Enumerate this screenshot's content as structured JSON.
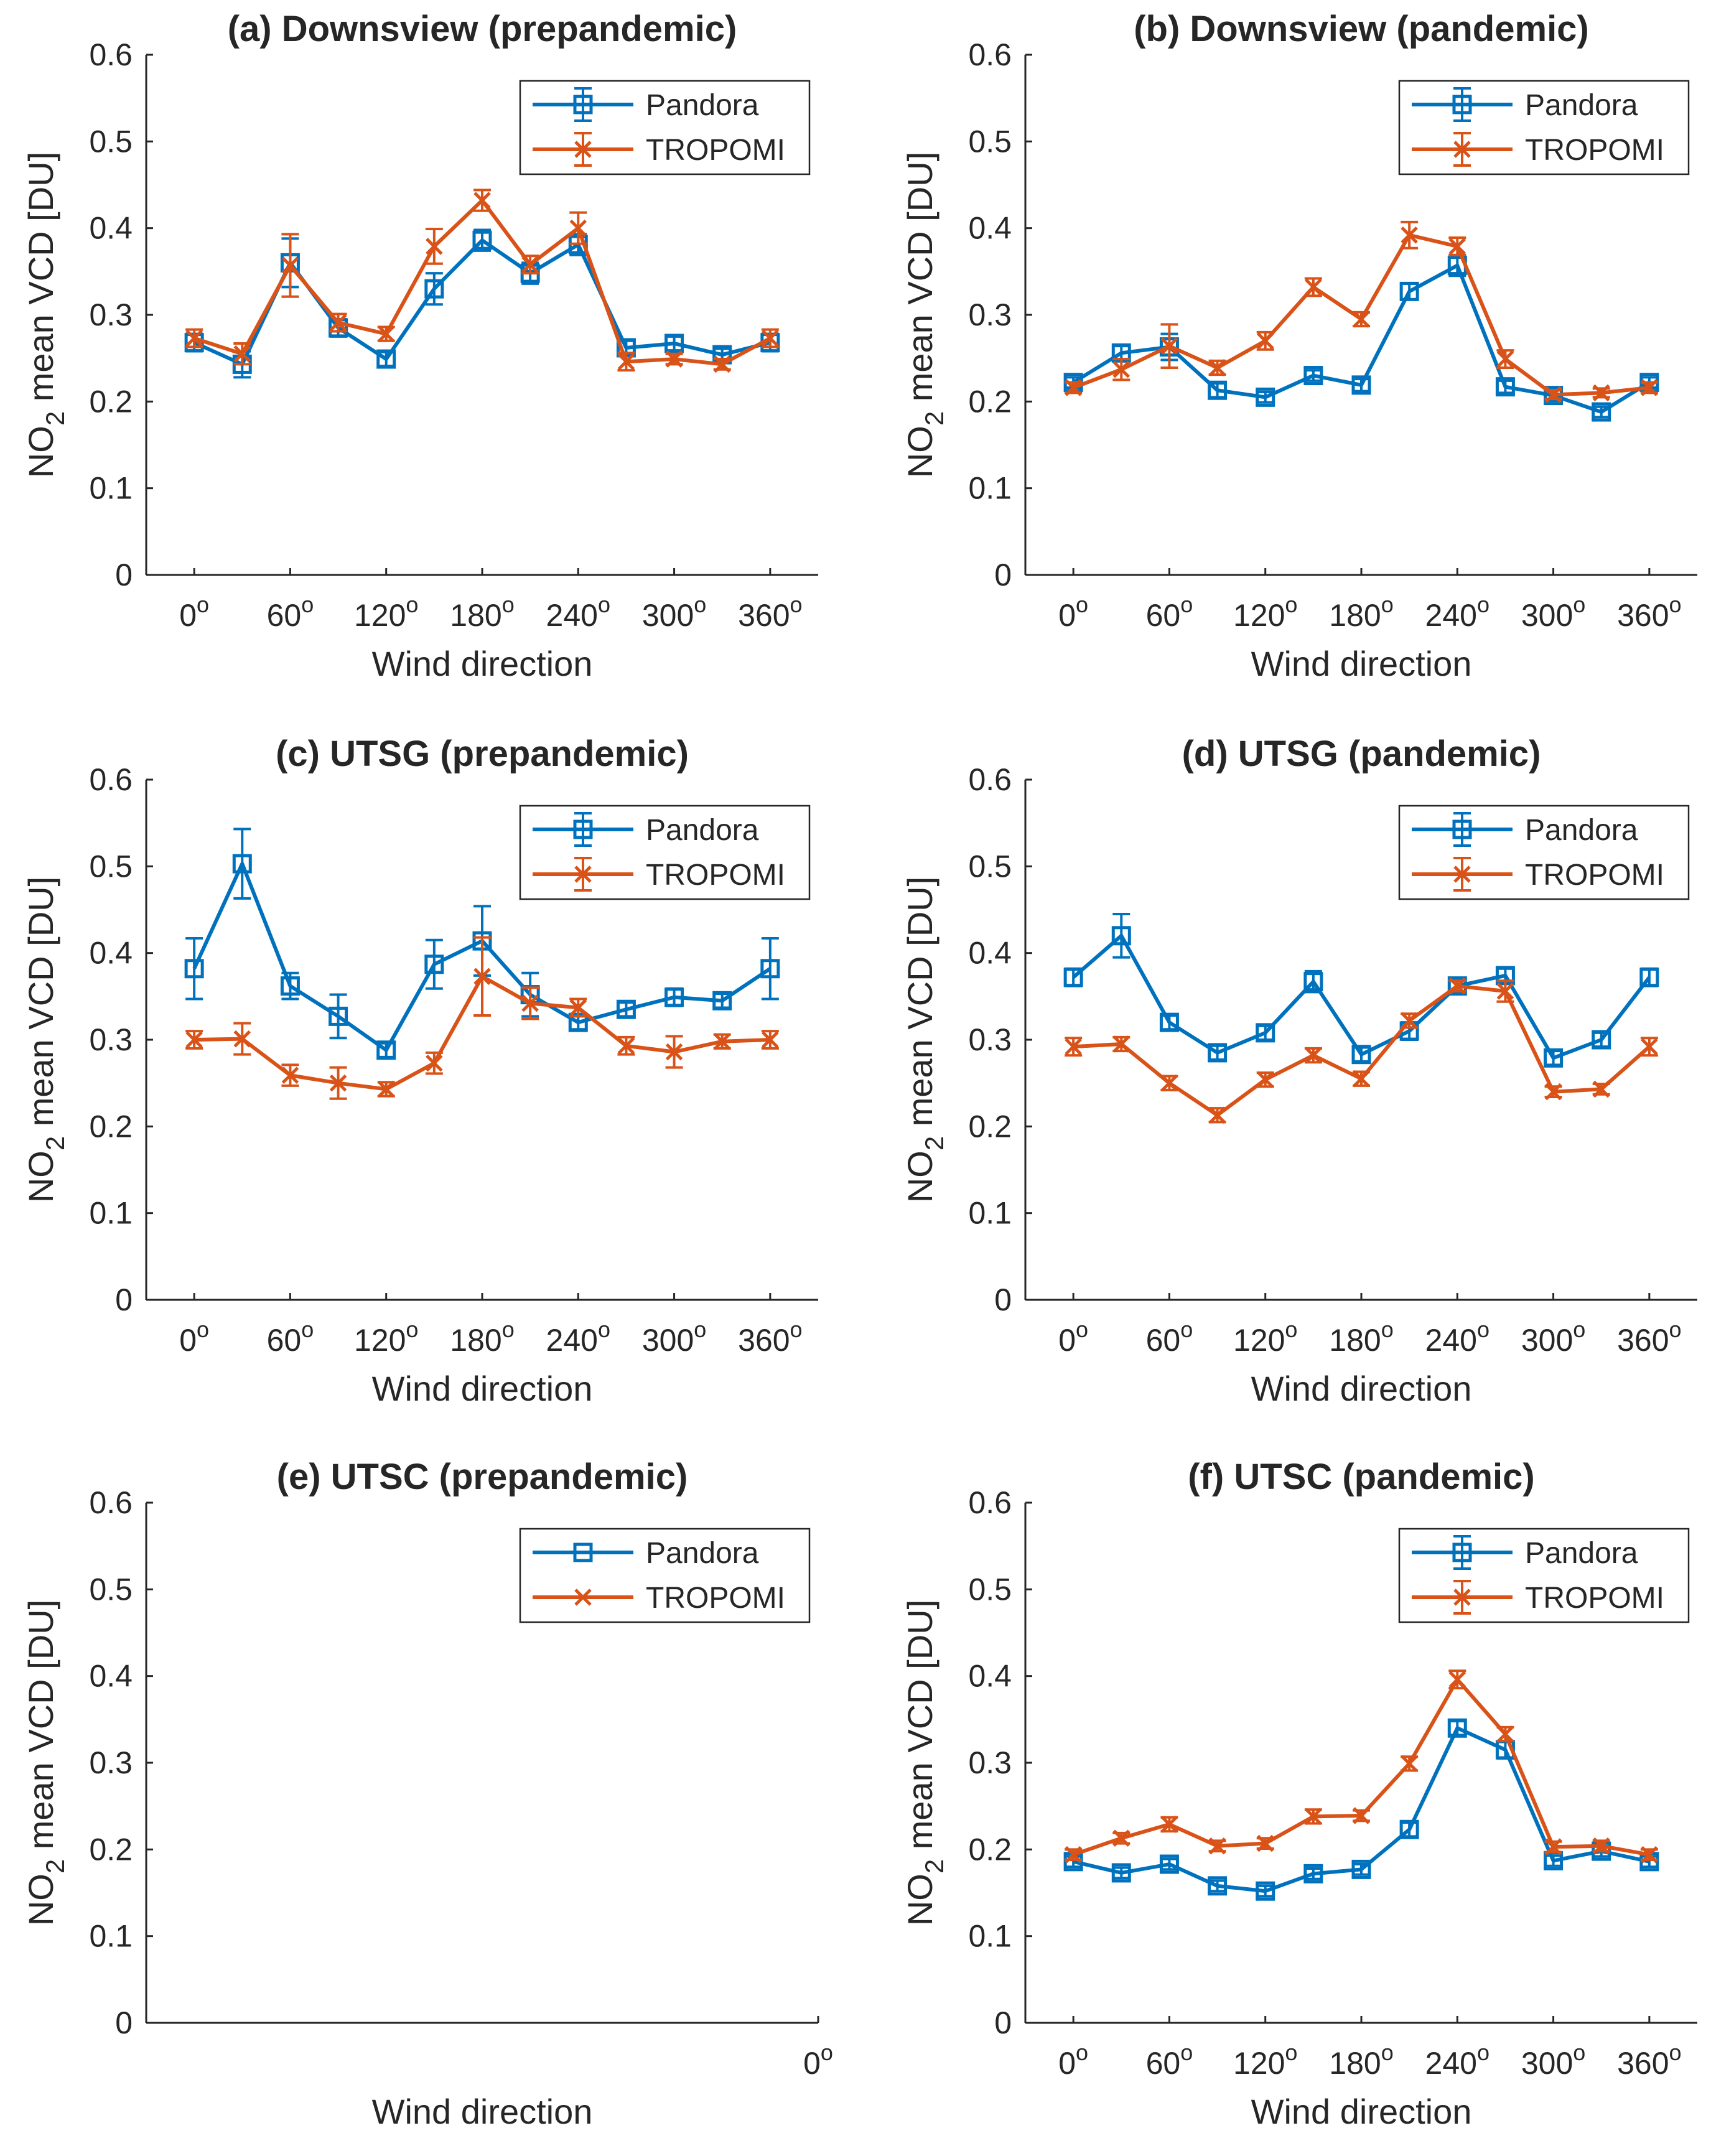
{
  "figure": {
    "colors": {
      "pandora": "#0072BD",
      "tropomi": "#D95319",
      "axis": "#262626"
    }
  },
  "chart_data": [
    {
      "type": "line",
      "title": "(a) Downsview (prepandemic)",
      "xlabel": "Wind direction",
      "ylabel_parts": [
        "NO",
        "2",
        " mean VCD [DU]"
      ],
      "xlim": [
        -30,
        390
      ],
      "ylim": [
        0,
        0.6
      ],
      "yticks": [
        "0",
        "0.1",
        "0.2",
        "0.3",
        "0.4",
        "0.5",
        "0.6"
      ],
      "xticks": [
        "0",
        "60",
        "120",
        "180",
        "240",
        "300",
        "360"
      ],
      "degree_symbol": "o",
      "legend": {
        "location": "top-right",
        "entries": [
          "Pandora",
          "TROPOMI"
        ]
      },
      "x": [
        0,
        30,
        60,
        90,
        120,
        150,
        180,
        210,
        240,
        270,
        300,
        330,
        360
      ],
      "series": [
        {
          "name": "Pandora",
          "marker": "square",
          "values": [
            0.268,
            0.243,
            0.36,
            0.285,
            0.249,
            0.33,
            0.386,
            0.348,
            0.381,
            0.262,
            0.267,
            0.254,
            0.268
          ],
          "errors": [
            0.01,
            0.015,
            0.028,
            0.01,
            0.008,
            0.018,
            0.012,
            0.012,
            0.012,
            0.008,
            0.008,
            0.007,
            0.01
          ]
        },
        {
          "name": "TROPOMI",
          "marker": "x",
          "values": [
            0.273,
            0.255,
            0.357,
            0.291,
            0.278,
            0.379,
            0.432,
            0.358,
            0.4,
            0.246,
            0.249,
            0.243,
            0.273
          ],
          "errors": [
            0.01,
            0.012,
            0.036,
            0.01,
            0.008,
            0.02,
            0.012,
            0.01,
            0.018,
            0.01,
            0.006,
            0.006,
            0.01
          ]
        }
      ]
    },
    {
      "type": "line",
      "title": "(b) Downsview (pandemic)",
      "xlabel": "Wind direction",
      "ylabel_parts": [
        "NO",
        "2",
        " mean VCD [DU]"
      ],
      "xlim": [
        -30,
        390
      ],
      "ylim": [
        0,
        0.6
      ],
      "yticks": [
        "0",
        "0.1",
        "0.2",
        "0.3",
        "0.4",
        "0.5",
        "0.6"
      ],
      "xticks": [
        "0",
        "60",
        "120",
        "180",
        "240",
        "300",
        "360"
      ],
      "degree_symbol": "o",
      "legend": {
        "location": "top-right",
        "entries": [
          "Pandora",
          "TROPOMI"
        ]
      },
      "x": [
        0,
        30,
        60,
        90,
        120,
        150,
        180,
        210,
        240,
        270,
        300,
        330,
        360
      ],
      "series": [
        {
          "name": "Pandora",
          "marker": "square",
          "values": [
            0.222,
            0.256,
            0.263,
            0.213,
            0.205,
            0.23,
            0.219,
            0.327,
            0.357,
            0.217,
            0.207,
            0.188,
            0.222
          ],
          "errors": [
            0.006,
            0.008,
            0.015,
            0.008,
            0.006,
            0.006,
            0.007,
            0.009,
            0.012,
            0.007,
            0.006,
            0.006,
            0.006
          ]
        },
        {
          "name": "TROPOMI",
          "marker": "x",
          "values": [
            0.216,
            0.237,
            0.264,
            0.239,
            0.27,
            0.332,
            0.295,
            0.392,
            0.379,
            0.249,
            0.208,
            0.21,
            0.216
          ],
          "errors": [
            0.006,
            0.012,
            0.025,
            0.008,
            0.01,
            0.01,
            0.008,
            0.015,
            0.01,
            0.01,
            0.005,
            0.005,
            0.006
          ]
        }
      ]
    },
    {
      "type": "line",
      "title": "(c) UTSG (prepandemic)",
      "xlabel": "Wind direction",
      "ylabel_parts": [
        "NO",
        "2",
        " mean VCD [DU]"
      ],
      "xlim": [
        -30,
        390
      ],
      "ylim": [
        0,
        0.6
      ],
      "yticks": [
        "0",
        "0.1",
        "0.2",
        "0.3",
        "0.4",
        "0.5",
        "0.6"
      ],
      "xticks": [
        "0",
        "60",
        "120",
        "180",
        "240",
        "300",
        "360"
      ],
      "degree_symbol": "o",
      "legend": {
        "location": "top-right",
        "entries": [
          "Pandora",
          "TROPOMI"
        ]
      },
      "x": [
        0,
        30,
        60,
        90,
        120,
        150,
        180,
        210,
        240,
        270,
        300,
        330,
        360
      ],
      "series": [
        {
          "name": "Pandora",
          "marker": "square",
          "values": [
            0.382,
            0.503,
            0.362,
            0.327,
            0.288,
            0.387,
            0.414,
            0.352,
            0.32,
            0.335,
            0.349,
            0.345,
            0.382
          ],
          "errors": [
            0.035,
            0.04,
            0.015,
            0.025,
            0.008,
            0.028,
            0.04,
            0.025,
            0.008,
            0.008,
            0.01,
            0.008,
            0.035
          ]
        },
        {
          "name": "TROPOMI",
          "marker": "x",
          "values": [
            0.3,
            0.301,
            0.259,
            0.25,
            0.243,
            0.273,
            0.373,
            0.342,
            0.337,
            0.293,
            0.286,
            0.298,
            0.3
          ],
          "errors": [
            0.01,
            0.018,
            0.012,
            0.018,
            0.008,
            0.012,
            0.045,
            0.018,
            0.01,
            0.01,
            0.018,
            0.008,
            0.01
          ]
        }
      ]
    },
    {
      "type": "line",
      "title": "(d) UTSG (pandemic)",
      "xlabel": "Wind direction",
      "ylabel_parts": [
        "NO",
        "2",
        " mean VCD [DU]"
      ],
      "xlim": [
        -30,
        390
      ],
      "ylim": [
        0,
        0.6
      ],
      "yticks": [
        "0",
        "0.1",
        "0.2",
        "0.3",
        "0.4",
        "0.5",
        "0.6"
      ],
      "xticks": [
        "0",
        "60",
        "120",
        "180",
        "240",
        "300",
        "360"
      ],
      "degree_symbol": "o",
      "legend": {
        "location": "top-right",
        "entries": [
          "Pandora",
          "TROPOMI"
        ]
      },
      "x": [
        0,
        30,
        60,
        90,
        120,
        150,
        180,
        210,
        240,
        270,
        300,
        330,
        360
      ],
      "series": [
        {
          "name": "Pandora",
          "marker": "square",
          "values": [
            0.372,
            0.42,
            0.32,
            0.285,
            0.308,
            0.367,
            0.283,
            0.31,
            0.362,
            0.374,
            0.279,
            0.3,
            0.372
          ],
          "errors": [
            0.01,
            0.025,
            0.008,
            0.008,
            0.008,
            0.012,
            0.008,
            0.01,
            0.008,
            0.008,
            0.008,
            0.008,
            0.01
          ]
        },
        {
          "name": "TROPOMI",
          "marker": "x",
          "values": [
            0.292,
            0.295,
            0.25,
            0.213,
            0.254,
            0.282,
            0.255,
            0.322,
            0.362,
            0.356,
            0.24,
            0.243,
            0.292
          ],
          "errors": [
            0.01,
            0.008,
            0.008,
            0.008,
            0.008,
            0.008,
            0.008,
            0.008,
            0.006,
            0.012,
            0.006,
            0.006,
            0.01
          ]
        }
      ]
    },
    {
      "type": "line",
      "title": "(e) UTSC (prepandemic)",
      "xlabel": "Wind direction",
      "ylabel_parts": [
        "NO",
        "2",
        " mean VCD [DU]"
      ],
      "xlim": [
        -30,
        390
      ],
      "ylim": [
        0,
        0.6
      ],
      "yticks": [
        "0",
        "0.1",
        "0.2",
        "0.3",
        "0.4",
        "0.5",
        "0.6"
      ],
      "xticks": [
        "0"
      ],
      "xtick_pos": "right-edge",
      "degree_symbol": "o",
      "legend": {
        "location": "top-right",
        "entries": [
          "Pandora",
          "TROPOMI"
        ],
        "no_errorbars": true
      },
      "x": [],
      "series": [
        {
          "name": "Pandora",
          "marker": "square",
          "values": [],
          "errors": []
        },
        {
          "name": "TROPOMI",
          "marker": "x",
          "values": [],
          "errors": []
        }
      ]
    },
    {
      "type": "line",
      "title": "(f) UTSC (pandemic)",
      "xlabel": "Wind direction",
      "ylabel_parts": [
        "NO",
        "2",
        " mean VCD [DU]"
      ],
      "xlim": [
        -30,
        390
      ],
      "ylim": [
        0,
        0.6
      ],
      "yticks": [
        "0",
        "0.1",
        "0.2",
        "0.3",
        "0.4",
        "0.5",
        "0.6"
      ],
      "xticks": [
        "0",
        "60",
        "120",
        "180",
        "240",
        "300",
        "360"
      ],
      "degree_symbol": "o",
      "legend": {
        "location": "top-right",
        "entries": [
          "Pandora",
          "TROPOMI"
        ]
      },
      "x": [
        0,
        30,
        60,
        90,
        120,
        150,
        180,
        210,
        240,
        270,
        300,
        330,
        360
      ],
      "series": [
        {
          "name": "Pandora",
          "marker": "square",
          "values": [
            0.186,
            0.173,
            0.183,
            0.158,
            0.152,
            0.172,
            0.177,
            0.223,
            0.34,
            0.315,
            0.187,
            0.198,
            0.186
          ],
          "errors": [
            0.006,
            0.006,
            0.006,
            0.006,
            0.006,
            0.006,
            0.006,
            0.008,
            0.008,
            0.01,
            0.006,
            0.006,
            0.006
          ]
        },
        {
          "name": "TROPOMI",
          "marker": "x",
          "values": [
            0.194,
            0.213,
            0.229,
            0.204,
            0.207,
            0.238,
            0.239,
            0.299,
            0.396,
            0.333,
            0.203,
            0.204,
            0.194
          ],
          "errors": [
            0.006,
            0.006,
            0.008,
            0.006,
            0.006,
            0.008,
            0.006,
            0.008,
            0.01,
            0.008,
            0.006,
            0.006,
            0.006
          ]
        }
      ]
    }
  ]
}
